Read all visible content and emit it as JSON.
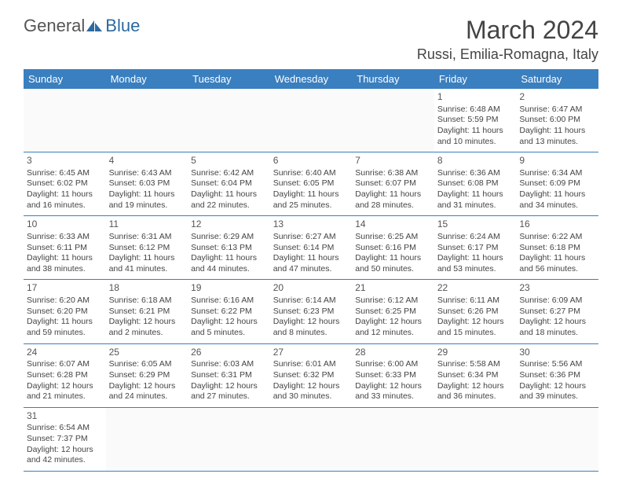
{
  "logo": {
    "general": "General",
    "blue": "Blue"
  },
  "title": "March 2024",
  "location": "Russi, Emilia-Romagna, Italy",
  "day_headers": [
    "Sunday",
    "Monday",
    "Tuesday",
    "Wednesday",
    "Thursday",
    "Friday",
    "Saturday"
  ],
  "colors": {
    "header_bg": "#3a7fbf",
    "header_fg": "#ffffff",
    "border": "#3a7fbf",
    "text": "#444444",
    "logo_blue": "#2c6aa0"
  },
  "weeks": [
    [
      null,
      null,
      null,
      null,
      null,
      {
        "n": "1",
        "sunrise": "6:48 AM",
        "sunset": "5:59 PM",
        "day_h": "11",
        "day_m": "10"
      },
      {
        "n": "2",
        "sunrise": "6:47 AM",
        "sunset": "6:00 PM",
        "day_h": "11",
        "day_m": "13"
      }
    ],
    [
      {
        "n": "3",
        "sunrise": "6:45 AM",
        "sunset": "6:02 PM",
        "day_h": "11",
        "day_m": "16"
      },
      {
        "n": "4",
        "sunrise": "6:43 AM",
        "sunset": "6:03 PM",
        "day_h": "11",
        "day_m": "19"
      },
      {
        "n": "5",
        "sunrise": "6:42 AM",
        "sunset": "6:04 PM",
        "day_h": "11",
        "day_m": "22"
      },
      {
        "n": "6",
        "sunrise": "6:40 AM",
        "sunset": "6:05 PM",
        "day_h": "11",
        "day_m": "25"
      },
      {
        "n": "7",
        "sunrise": "6:38 AM",
        "sunset": "6:07 PM",
        "day_h": "11",
        "day_m": "28"
      },
      {
        "n": "8",
        "sunrise": "6:36 AM",
        "sunset": "6:08 PM",
        "day_h": "11",
        "day_m": "31"
      },
      {
        "n": "9",
        "sunrise": "6:34 AM",
        "sunset": "6:09 PM",
        "day_h": "11",
        "day_m": "34"
      }
    ],
    [
      {
        "n": "10",
        "sunrise": "6:33 AM",
        "sunset": "6:11 PM",
        "day_h": "11",
        "day_m": "38"
      },
      {
        "n": "11",
        "sunrise": "6:31 AM",
        "sunset": "6:12 PM",
        "day_h": "11",
        "day_m": "41"
      },
      {
        "n": "12",
        "sunrise": "6:29 AM",
        "sunset": "6:13 PM",
        "day_h": "11",
        "day_m": "44"
      },
      {
        "n": "13",
        "sunrise": "6:27 AM",
        "sunset": "6:14 PM",
        "day_h": "11",
        "day_m": "47"
      },
      {
        "n": "14",
        "sunrise": "6:25 AM",
        "sunset": "6:16 PM",
        "day_h": "11",
        "day_m": "50"
      },
      {
        "n": "15",
        "sunrise": "6:24 AM",
        "sunset": "6:17 PM",
        "day_h": "11",
        "day_m": "53"
      },
      {
        "n": "16",
        "sunrise": "6:22 AM",
        "sunset": "6:18 PM",
        "day_h": "11",
        "day_m": "56"
      }
    ],
    [
      {
        "n": "17",
        "sunrise": "6:20 AM",
        "sunset": "6:20 PM",
        "day_h": "11",
        "day_m": "59"
      },
      {
        "n": "18",
        "sunrise": "6:18 AM",
        "sunset": "6:21 PM",
        "day_h": "12",
        "day_m": "2"
      },
      {
        "n": "19",
        "sunrise": "6:16 AM",
        "sunset": "6:22 PM",
        "day_h": "12",
        "day_m": "5"
      },
      {
        "n": "20",
        "sunrise": "6:14 AM",
        "sunset": "6:23 PM",
        "day_h": "12",
        "day_m": "8"
      },
      {
        "n": "21",
        "sunrise": "6:12 AM",
        "sunset": "6:25 PM",
        "day_h": "12",
        "day_m": "12"
      },
      {
        "n": "22",
        "sunrise": "6:11 AM",
        "sunset": "6:26 PM",
        "day_h": "12",
        "day_m": "15"
      },
      {
        "n": "23",
        "sunrise": "6:09 AM",
        "sunset": "6:27 PM",
        "day_h": "12",
        "day_m": "18"
      }
    ],
    [
      {
        "n": "24",
        "sunrise": "6:07 AM",
        "sunset": "6:28 PM",
        "day_h": "12",
        "day_m": "21"
      },
      {
        "n": "25",
        "sunrise": "6:05 AM",
        "sunset": "6:29 PM",
        "day_h": "12",
        "day_m": "24"
      },
      {
        "n": "26",
        "sunrise": "6:03 AM",
        "sunset": "6:31 PM",
        "day_h": "12",
        "day_m": "27"
      },
      {
        "n": "27",
        "sunrise": "6:01 AM",
        "sunset": "6:32 PM",
        "day_h": "12",
        "day_m": "30"
      },
      {
        "n": "28",
        "sunrise": "6:00 AM",
        "sunset": "6:33 PM",
        "day_h": "12",
        "day_m": "33"
      },
      {
        "n": "29",
        "sunrise": "5:58 AM",
        "sunset": "6:34 PM",
        "day_h": "12",
        "day_m": "36"
      },
      {
        "n": "30",
        "sunrise": "5:56 AM",
        "sunset": "6:36 PM",
        "day_h": "12",
        "day_m": "39"
      }
    ],
    [
      {
        "n": "31",
        "sunrise": "6:54 AM",
        "sunset": "7:37 PM",
        "day_h": "12",
        "day_m": "42"
      },
      null,
      null,
      null,
      null,
      null,
      null
    ]
  ]
}
